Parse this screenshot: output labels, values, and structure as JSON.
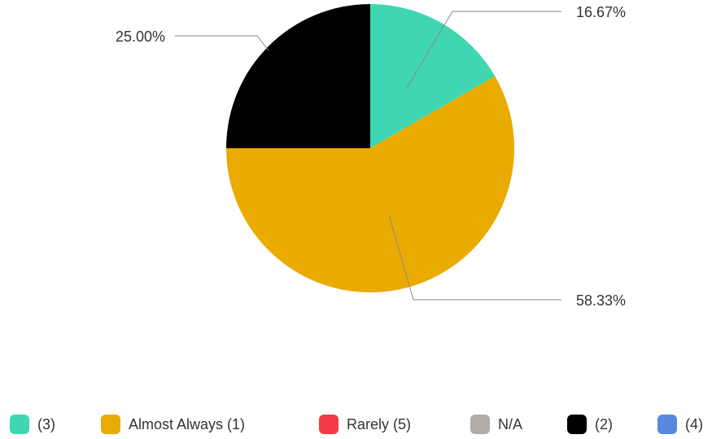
{
  "chart_data": {
    "type": "pie",
    "series": [
      {
        "name": "(3)",
        "value": 16.67,
        "label": "16.67%",
        "color": "#40D6B2"
      },
      {
        "name": "Almost Always (1)",
        "value": 58.33,
        "label": "58.33%",
        "color": "#EAAB00"
      },
      {
        "name": "Rarely (5)",
        "value": 0,
        "label": "",
        "color": "#F33A48"
      },
      {
        "name": "N/A",
        "value": 0,
        "label": "",
        "color": "#B0ABA4"
      },
      {
        "name": "(2)",
        "value": 25.0,
        "label": "25.00%",
        "color": "#000000"
      },
      {
        "name": "(4)",
        "value": 0,
        "label": "",
        "color": "#5A87E0"
      }
    ],
    "legend_position": "bottom"
  }
}
